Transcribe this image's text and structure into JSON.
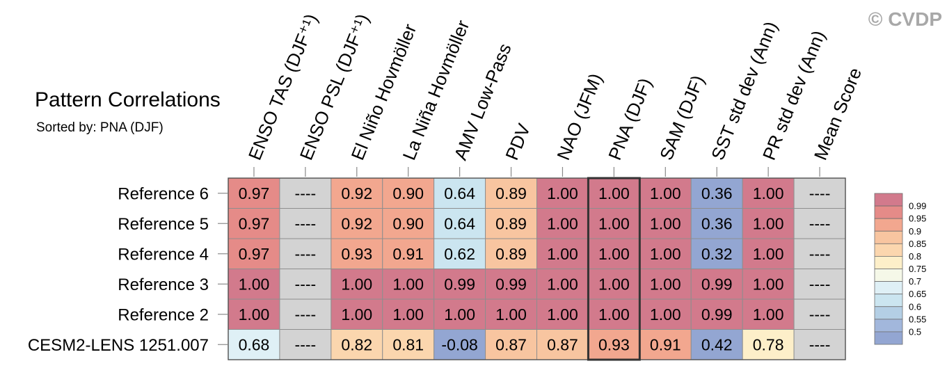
{
  "watermark": "© CVDP",
  "chart_data": {
    "type": "heatmap",
    "title": "Pattern Correlations",
    "subtitle": "Sorted by: PNA (DJF)",
    "columns": [
      "ENSO TAS (DJF⁺¹)",
      "ENSO PSL (DJF⁺¹)",
      "El Niño Hovmöller",
      "La Niña Hovmöller",
      "AMV Low-Pass",
      "PDV",
      "NAO (JFM)",
      "PNA (DJF)",
      "SAM (DJF)",
      "SST std dev (Ann)",
      "PR std dev (Ann)",
      "Mean Score"
    ],
    "rows": [
      "Reference 6",
      "Reference 5",
      "Reference 4",
      "Reference 3",
      "Reference 2",
      "CESM2-LENS 1251.007"
    ],
    "values": [
      [
        0.97,
        null,
        0.92,
        0.9,
        0.64,
        0.89,
        1.0,
        1.0,
        1.0,
        0.36,
        1.0,
        null
      ],
      [
        0.97,
        null,
        0.92,
        0.9,
        0.64,
        0.89,
        1.0,
        1.0,
        1.0,
        0.36,
        1.0,
        null
      ],
      [
        0.97,
        null,
        0.93,
        0.91,
        0.62,
        0.89,
        1.0,
        1.0,
        1.0,
        0.32,
        1.0,
        null
      ],
      [
        1.0,
        null,
        1.0,
        1.0,
        0.99,
        0.99,
        1.0,
        1.0,
        1.0,
        0.99,
        1.0,
        null
      ],
      [
        1.0,
        null,
        1.0,
        1.0,
        1.0,
        1.0,
        1.0,
        1.0,
        1.0,
        0.99,
        1.0,
        null
      ],
      [
        0.68,
        null,
        0.82,
        0.81,
        -0.08,
        0.87,
        0.87,
        0.93,
        0.91,
        0.42,
        0.78,
        null
      ]
    ],
    "missing_label": "----",
    "missing_color": "#d3d3d3",
    "highlight_column_index": 7,
    "colorbar": {
      "placement": "right",
      "levels": [
        0.99,
        0.95,
        0.9,
        0.85,
        0.8,
        0.75,
        0.7,
        0.65,
        0.6,
        0.55,
        0.5
      ],
      "colors": [
        "#d27a8c",
        "#e58b88",
        "#f2a78f",
        "#f8c5a0",
        "#fbd6ae",
        "#fdefc9",
        "#f5f8e8",
        "#dff0f6",
        "#cbe5f0",
        "#b4cfe5",
        "#a2b7dc",
        "#93a6d2"
      ]
    }
  }
}
